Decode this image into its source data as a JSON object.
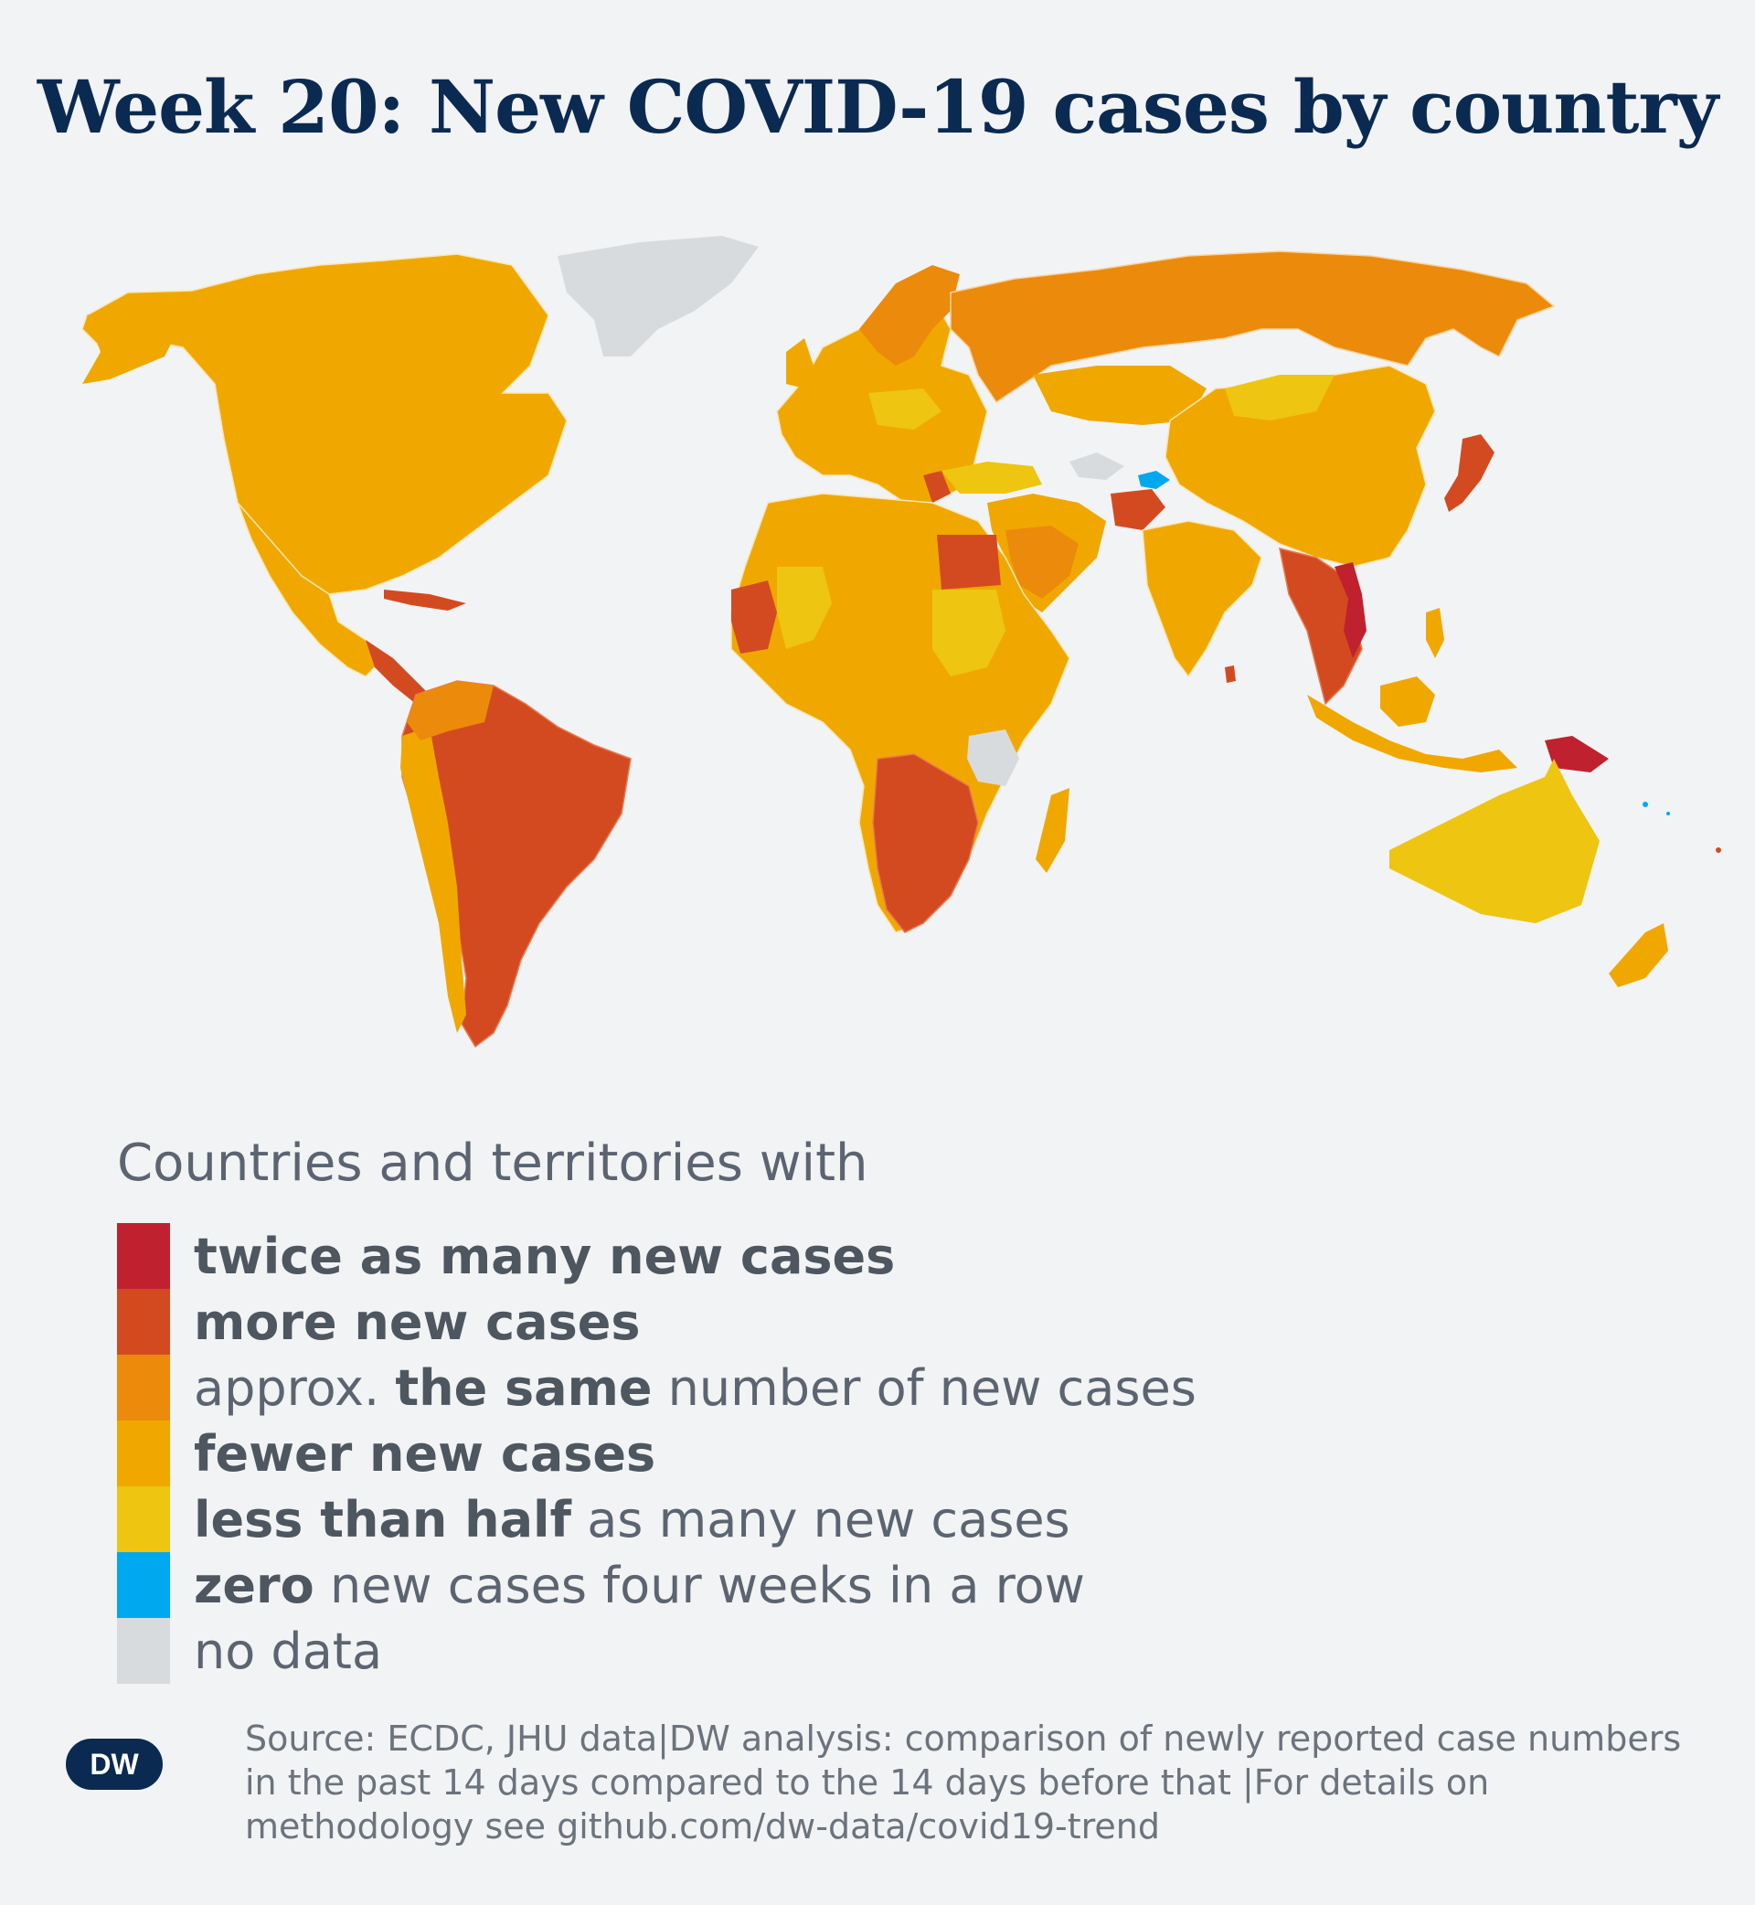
{
  "title": "Week 20: New COVID-19 cases by country",
  "legend": {
    "intro": "Countries and territories with",
    "items": [
      {
        "bold": "twice as many new cases",
        "rest": "",
        "color": "#c0212e"
      },
      {
        "bold": "more new cases",
        "rest": "",
        "color": "#d44a20"
      },
      {
        "prefix": "approx. ",
        "bold": "the same",
        "rest": " number of new cases",
        "color": "#ec8a0c"
      },
      {
        "bold": "fewer new cases",
        "rest": "",
        "color": "#f0a800"
      },
      {
        "bold": "less than half",
        "rest": " as many new cases",
        "color": "#eec510"
      },
      {
        "bold": "zero",
        "rest": " new cases four weeks in a row",
        "color": "#00a8f0"
      },
      {
        "bold": "",
        "rest": "no data",
        "color": "#d8dbde"
      }
    ]
  },
  "logo": {
    "text": "DW",
    "icon": "dw-logo-icon"
  },
  "source": "Source: ECDC, JHU data|DW analysis: comparison of newly reported case numbers in the past 14 days compared to the 14 days before that |For details on methodology see github.com/dw-data/covid19-trend"
}
